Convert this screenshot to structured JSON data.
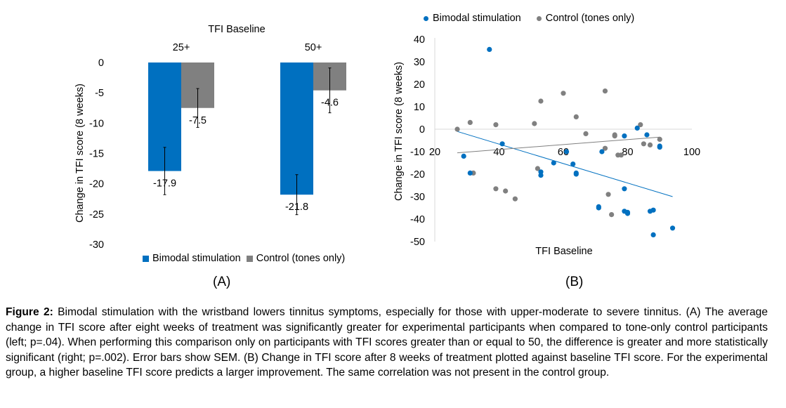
{
  "chart_data": [
    {
      "panel": "(A)",
      "type": "bar",
      "title": "TFI Baseline",
      "ylabel": "Change in TFI score (8 weeks)",
      "ylim": [
        -30,
        0
      ],
      "yticks": [
        0,
        -5,
        -10,
        -15,
        -20,
        -25,
        -30
      ],
      "categories": [
        "25+",
        "50+"
      ],
      "series": [
        {
          "name": "Bimodal stimulation",
          "color": "#0070c0",
          "values": [
            -17.9,
            -21.8
          ],
          "errors": [
            3.9,
            3.3
          ],
          "labels": [
            "-17.9",
            "-21.8"
          ]
        },
        {
          "name": "Control (tones only)",
          "color": "#808080",
          "values": [
            -7.5,
            -4.6
          ],
          "errors": [
            3.2,
            3.7
          ],
          "labels": [
            "-7.5",
            "-4.6"
          ]
        }
      ],
      "legend": "bottom"
    },
    {
      "panel": "(B)",
      "type": "scatter",
      "xlabel": "TFI Baseline",
      "ylabel": "Change in TFI score (8 weeks)",
      "xlim": [
        20,
        100
      ],
      "ylim": [
        -50,
        40
      ],
      "xticks": [
        20,
        40,
        60,
        80,
        100
      ],
      "yticks": [
        40,
        30,
        20,
        10,
        0,
        -10,
        -20,
        -30,
        -40,
        -50
      ],
      "legend": "top",
      "series": [
        {
          "name": "Bimodal stimulation",
          "color": "#0070c0",
          "trendline": [
            [
              27,
              -1
            ],
            [
              94,
              -30
            ]
          ],
          "points": [
            [
              29,
              -12
            ],
            [
              31,
              -19.5
            ],
            [
              37,
              35.5
            ],
            [
              41,
              -6.5
            ],
            [
              53,
              -20.5
            ],
            [
              53,
              -19
            ],
            [
              57,
              -15
            ],
            [
              61,
              -10
            ],
            [
              63,
              -15.5
            ],
            [
              64,
              -20
            ],
            [
              64,
              -19.5
            ],
            [
              71,
              -35
            ],
            [
              71,
              -34.5
            ],
            [
              72,
              -10
            ],
            [
              79,
              -26.5
            ],
            [
              79,
              -3
            ],
            [
              79,
              -36.5
            ],
            [
              80,
              -37.5
            ],
            [
              80,
              -37
            ],
            [
              83,
              0.5
            ],
            [
              86,
              -2.5
            ],
            [
              87,
              -36.5
            ],
            [
              88,
              -36
            ],
            [
              88,
              -47
            ],
            [
              90,
              -7.5
            ],
            [
              90,
              -8
            ],
            [
              94,
              -44
            ]
          ]
        },
        {
          "name": "Control (tones only)",
          "color": "#808080",
          "trendline": [
            [
              27,
              -10.5
            ],
            [
              90,
              -3.5
            ]
          ],
          "points": [
            [
              27,
              0
            ],
            [
              31,
              3
            ],
            [
              32,
              -19.5
            ],
            [
              39,
              2
            ],
            [
              39,
              -26.5
            ],
            [
              42,
              -27.5
            ],
            [
              45,
              -31
            ],
            [
              51,
              2.5
            ],
            [
              52,
              -17.5
            ],
            [
              53,
              12.5
            ],
            [
              60,
              16
            ],
            [
              64,
              5.5
            ],
            [
              67,
              -2
            ],
            [
              73,
              17
            ],
            [
              73,
              -8.5
            ],
            [
              75,
              -38
            ],
            [
              76,
              -2.5
            ],
            [
              76,
              -3
            ],
            [
              77,
              -11.5
            ],
            [
              78,
              -11.5
            ],
            [
              84,
              2
            ],
            [
              85,
              -6.5
            ],
            [
              87,
              -7
            ],
            [
              90,
              -4.5
            ],
            [
              74,
              -29
            ]
          ]
        }
      ]
    }
  ],
  "panel_labels": [
    "(A)",
    "(B)"
  ],
  "caption": {
    "prefix": "Figure 2:",
    "text": " Bimodal stimulation with the wristband lowers tinnitus symptoms, especially for those with upper-moderate to severe tinnitus. (A) The average change in TFI score after eight weeks of treatment was significantly greater for experimental participants when compared to tone-only control participants (left; p=.04). When performing this comparison only on participants with TFI scores greater than or equal to 50, the difference is greater and more statistically significant (right; p=.002). Error bars show SEM. (B) Change in TFI score after 8 weeks of treatment plotted against baseline TFI score. For the experimental group, a higher baseline TFI score predicts a larger improvement. The same correlation was not present in the control group."
  }
}
